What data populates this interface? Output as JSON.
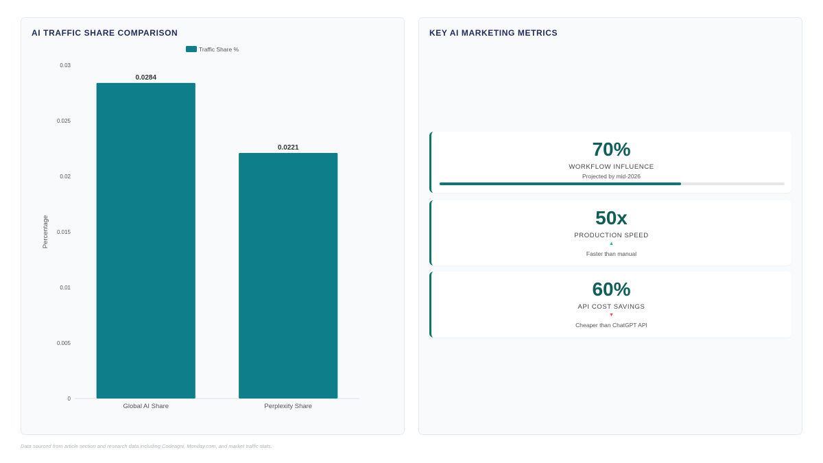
{
  "chart_panel": {
    "title": "AI TRAFFIC SHARE COMPARISON"
  },
  "chart_data": {
    "type": "bar",
    "categories": [
      "Global AI Share",
      "Perplexity Share"
    ],
    "series": [
      {
        "name": "Traffic Share %",
        "values": [
          0.0284,
          0.0221
        ],
        "color": "#0e7f8a"
      }
    ],
    "data_labels": [
      "0.0284",
      "0.0221"
    ],
    "xlabel": "",
    "ylabel": "Percentage",
    "ylim": [
      0,
      0.03
    ],
    "yticks": [
      "0",
      "0.005",
      "0.01",
      "0.015",
      "0.02",
      "0.025",
      "0.03"
    ],
    "legend_position": "top-center",
    "grid": false
  },
  "metrics_panel": {
    "title": "KEY AI MARKETING METRICS",
    "cards": [
      {
        "value": "70%",
        "label": "WORKFLOW INFLUENCE",
        "note": "Projected by mid-2026",
        "progress": 0.7
      },
      {
        "value": "50x",
        "label": "PRODUCTION SPEED",
        "arrow": "▲",
        "arrow_color": "#10b981",
        "note": "Faster than manual"
      },
      {
        "value": "60%",
        "label": "API COST SAVINGS",
        "arrow": "▼",
        "arrow_color": "#ef4444",
        "note": "Cheaper than ChatGPT API"
      }
    ]
  },
  "footnote": "Data sourced from article section and research data including Codeagni, Monday.com, and market traffic stats."
}
